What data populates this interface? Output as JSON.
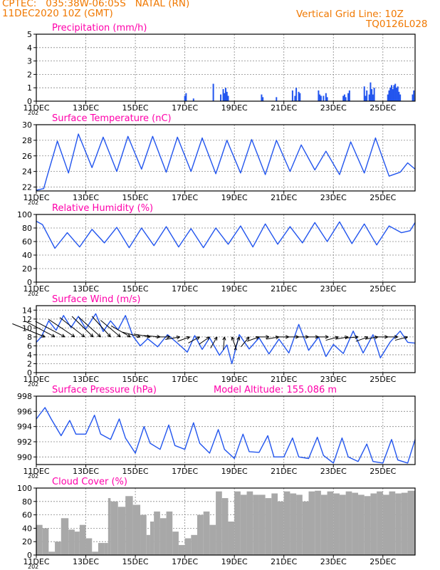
{
  "header": {
    "line1": "CPTEC:   035:38W-06:05S   NATAL (RN)",
    "line2": "11DEC2020 10Z (GMT)",
    "grid_note": "Vertical Grid Line: 10Z",
    "code": "TQ0126L028"
  },
  "colors": {
    "header": "#f07800",
    "title": "#ff00aa",
    "line": "#2255ee",
    "grid": "#888888",
    "cloud": "#a8a8a8",
    "wind_arrow": "#000000"
  },
  "x_axis": {
    "tick_labels": [
      "11DEC",
      "13DEC",
      "15DEC",
      "17DEC",
      "19DEC",
      "21DEC",
      "23DEC",
      "25DEC"
    ],
    "tick_days": [
      0,
      2,
      4,
      6,
      8,
      10,
      12,
      14
    ],
    "truncated_year_label": "202",
    "range_days": [
      0,
      15.3
    ]
  },
  "chart_data": [
    {
      "type": "bar",
      "id": "precip",
      "title": "Precipitation (mm/h)",
      "ylim": [
        0,
        5
      ],
      "yticks": [
        0,
        1,
        2,
        3,
        4,
        5
      ],
      "grid": true,
      "x_days": [
        6.0,
        6.05,
        6.35,
        7.15,
        7.45,
        7.55,
        7.6,
        7.65,
        7.7,
        7.75,
        9.1,
        9.15,
        9.7,
        10.35,
        10.45,
        10.5,
        10.6,
        10.65,
        11.4,
        11.45,
        11.5,
        11.6,
        11.7,
        11.75,
        12.4,
        12.45,
        12.5,
        12.6,
        12.65,
        13.25,
        13.3,
        13.35,
        13.45,
        13.5,
        13.55,
        13.6,
        13.65,
        14.2,
        14.25,
        14.3,
        14.35,
        14.4,
        14.45,
        14.5,
        14.55,
        14.6,
        14.65,
        14.7,
        15.2,
        15.25
      ],
      "values": [
        0.4,
        0.6,
        0.2,
        1.3,
        0.5,
        0.9,
        0.6,
        1.0,
        0.7,
        0.4,
        0.5,
        0.3,
        0.3,
        0.8,
        0.4,
        1.0,
        0.7,
        0.6,
        0.8,
        0.5,
        0.4,
        0.4,
        0.6,
        0.3,
        0.4,
        0.5,
        0.3,
        0.6,
        0.8,
        1.1,
        0.4,
        0.8,
        0.5,
        1.4,
        0.9,
        0.5,
        1.0,
        0.5,
        0.8,
        1.0,
        1.2,
        0.9,
        1.2,
        1.3,
        1.0,
        1.1,
        0.7,
        0.5,
        0.5,
        0.8
      ]
    },
    {
      "type": "line",
      "id": "temp",
      "title": "Surface Temperature (nC)",
      "ylim": [
        21.5,
        30
      ],
      "yticks": [
        22,
        24,
        26,
        28,
        30
      ],
      "grid": true,
      "series": [
        {
          "x_days": [
            0,
            0.3,
            0.45,
            0.85,
            1.3,
            1.7,
            2.25,
            2.7,
            3.25,
            3.7,
            4.25,
            4.7,
            5.25,
            5.7,
            6.25,
            6.7,
            7.25,
            7.7,
            8.25,
            8.7,
            9.25,
            9.7,
            10.25,
            10.7,
            11.25,
            11.7,
            12.25,
            12.7,
            13.25,
            13.7,
            14.25,
            14.7,
            15.0,
            15.3
          ],
          "values": [
            21.6,
            21.8,
            23.5,
            27.9,
            23.8,
            28.8,
            24.5,
            28.4,
            24.0,
            28.5,
            24.3,
            28.5,
            23.9,
            28.4,
            24.0,
            28.3,
            23.7,
            28.0,
            23.8,
            28.1,
            23.6,
            28.0,
            24.0,
            27.4,
            24.2,
            26.6,
            23.6,
            27.8,
            23.8,
            28.3,
            23.4,
            23.9,
            25.1,
            24.3
          ]
        }
      ]
    },
    {
      "type": "line",
      "id": "rh",
      "title": "Relative Humidity (%)",
      "ylim": [
        0,
        100
      ],
      "yticks": [
        0,
        20,
        40,
        60,
        80,
        100
      ],
      "grid": true,
      "series": [
        {
          "x_days": [
            0,
            0.25,
            0.75,
            1.25,
            1.75,
            2.25,
            2.75,
            3.25,
            3.75,
            4.25,
            4.75,
            5.25,
            5.75,
            6.25,
            6.75,
            7.25,
            7.75,
            8.25,
            8.75,
            9.25,
            9.75,
            10.25,
            10.75,
            11.25,
            11.75,
            12.25,
            12.75,
            13.25,
            13.75,
            14.25,
            14.75,
            15.1,
            15.3
          ],
          "values": [
            90,
            85,
            50,
            73,
            52,
            78,
            58,
            81,
            51,
            80,
            54,
            82,
            52,
            79,
            51,
            80,
            56,
            83,
            52,
            86,
            56,
            82,
            58,
            88,
            60,
            89,
            57,
            86,
            55,
            83,
            73,
            76,
            88
          ]
        }
      ]
    },
    {
      "type": "line",
      "id": "wind",
      "title": "Surface Wind (m/s)",
      "ylim": [
        0,
        15
      ],
      "yticks": [
        0,
        2,
        4,
        6,
        8,
        10,
        12,
        14
      ],
      "grid": true,
      "series": [
        {
          "x_days": [
            0,
            0.2,
            0.5,
            0.8,
            1.1,
            1.4,
            1.7,
            2.0,
            2.4,
            2.7,
            3.0,
            3.3,
            3.6,
            3.9,
            4.2,
            4.5,
            4.9,
            5.3,
            5.7,
            6.1,
            6.4,
            6.7,
            7.0,
            7.4,
            7.7,
            7.9,
            8.2,
            8.6,
            9.0,
            9.4,
            9.8,
            10.2,
            10.6,
            11.0,
            11.4,
            11.7,
            12.0,
            12.4,
            12.8,
            13.2,
            13.6,
            13.9,
            14.3,
            14.7,
            15.0,
            15.3
          ],
          "values": [
            6.8,
            8.0,
            11.6,
            9.5,
            12.8,
            10.1,
            12.6,
            9.8,
            13.2,
            9.2,
            11.6,
            9.6,
            12.8,
            8.2,
            6.0,
            7.6,
            5.8,
            8.5,
            6.6,
            4.6,
            8.3,
            5.2,
            7.8,
            3.9,
            6.2,
            2.0,
            8.5,
            5.3,
            7.8,
            4.2,
            7.5,
            4.4,
            10.8,
            5.0,
            8.0,
            3.6,
            6.3,
            4.3,
            9.3,
            4.4,
            8.5,
            3.3,
            6.9,
            9.3,
            6.8,
            6.6
          ]
        }
      ],
      "arrows": {
        "x_days": [
          0.35,
          0.75,
          1.15,
          1.55,
          1.95,
          2.3,
          2.6,
          3.0,
          3.4,
          3.8,
          4.2,
          4.6,
          5.0,
          5.4,
          5.8,
          6.2,
          6.6,
          7.0,
          7.3,
          7.6,
          7.9,
          8.2,
          8.6,
          9.0,
          9.4,
          9.8,
          10.2,
          10.6,
          11.0,
          11.4,
          11.8,
          12.2,
          12.6,
          13.0,
          13.4,
          13.8,
          14.2,
          14.6,
          15.0
        ],
        "speed": [
          9.5,
          9.0,
          9.0,
          8.5,
          8.5,
          8.0,
          8.0,
          7.5,
          7.0,
          6.0,
          5.0,
          4.5,
          4.5,
          4.0,
          4.0,
          3.5,
          3.5,
          3.5,
          3.5,
          3.5,
          3.8,
          3.8,
          3.5,
          3.5,
          3.5,
          3.5,
          3.5,
          3.5,
          3.5,
          3.5,
          3.5,
          3.5,
          3.5,
          3.5,
          3.5,
          3.5,
          3.5,
          3.5,
          3.5
        ],
        "dir_deg": [
          -22,
          -28,
          -28,
          -34,
          -38,
          -44,
          -42,
          -48,
          -40,
          -30,
          -15,
          -10,
          -5,
          0,
          10,
          20,
          28,
          35,
          60,
          85,
          110,
          70,
          50,
          20,
          0,
          10,
          0,
          0,
          0,
          0,
          0,
          15,
          10,
          5,
          20,
          10,
          0,
          0,
          15
        ]
      }
    },
    {
      "type": "line",
      "id": "pres",
      "title": "Surface Pressure (hPa)",
      "annotation": "Model Altitude: 155.086 m",
      "ylim": [
        989,
        998
      ],
      "yticks": [
        990,
        992,
        994,
        996,
        998
      ],
      "grid": true,
      "series": [
        {
          "x_days": [
            0,
            0.35,
            0.6,
            1.0,
            1.35,
            1.6,
            2.0,
            2.35,
            2.6,
            3.0,
            3.35,
            3.6,
            4.0,
            4.35,
            4.6,
            5.0,
            5.35,
            5.6,
            6.0,
            6.35,
            6.6,
            7.0,
            7.35,
            7.6,
            8.0,
            8.35,
            8.6,
            9.0,
            9.35,
            9.6,
            10.0,
            10.35,
            10.6,
            11.0,
            11.35,
            11.6,
            12.0,
            12.35,
            12.6,
            13.0,
            13.35,
            13.6,
            14.0,
            14.35,
            14.6,
            15.0,
            15.3
          ],
          "values": [
            995.0,
            996.5,
            995.0,
            992.8,
            994.8,
            993.0,
            993.0,
            995.5,
            993.0,
            992.3,
            995.0,
            992.5,
            990.5,
            994.0,
            991.8,
            991.0,
            994.2,
            991.5,
            991.0,
            994.5,
            991.8,
            990.5,
            993.6,
            991.0,
            989.8,
            993.0,
            990.7,
            990.6,
            992.8,
            990.0,
            990.0,
            992.5,
            990.0,
            989.8,
            992.6,
            990.2,
            989.2,
            992.5,
            990.0,
            989.4,
            991.7,
            989.4,
            989.2,
            992.3,
            989.6,
            989.2,
            992.3
          ]
        }
      ]
    },
    {
      "type": "area",
      "id": "cloud",
      "title": "Cloud Cover (%)",
      "ylim": [
        0,
        100
      ],
      "yticks": [
        0,
        20,
        40,
        60,
        80,
        100
      ],
      "grid": true,
      "x_days": [
        0,
        0.25,
        0.5,
        0.75,
        1.0,
        1.3,
        1.55,
        1.75,
        2.0,
        2.25,
        2.5,
        2.75,
        2.9,
        3.0,
        3.3,
        3.6,
        3.9,
        4.2,
        4.45,
        4.6,
        4.75,
        5.0,
        5.25,
        5.5,
        5.75,
        6.0,
        6.25,
        6.5,
        6.75,
        7.0,
        7.25,
        7.5,
        7.75,
        8.0,
        8.25,
        8.5,
        8.75,
        9.0,
        9.25,
        9.5,
        9.75,
        10.0,
        10.25,
        10.5,
        10.75,
        11.0,
        11.25,
        11.5,
        11.75,
        12.0,
        12.25,
        12.5,
        12.75,
        13.0,
        13.25,
        13.5,
        13.75,
        14.0,
        14.25,
        14.5,
        14.75,
        15.0,
        15.3
      ],
      "values": [
        45,
        40,
        5,
        20,
        55,
        38,
        35,
        45,
        25,
        5,
        18,
        18,
        85,
        80,
        72,
        88,
        75,
        60,
        30,
        50,
        65,
        55,
        65,
        35,
        15,
        25,
        30,
        60,
        65,
        45,
        95,
        85,
        50,
        95,
        90,
        95,
        90,
        90,
        85,
        92,
        80,
        95,
        92,
        90,
        80,
        95,
        96,
        90,
        95,
        92,
        90,
        95,
        93,
        90,
        88,
        92,
        95,
        90,
        95,
        92,
        93,
        96,
        96
      ]
    }
  ]
}
